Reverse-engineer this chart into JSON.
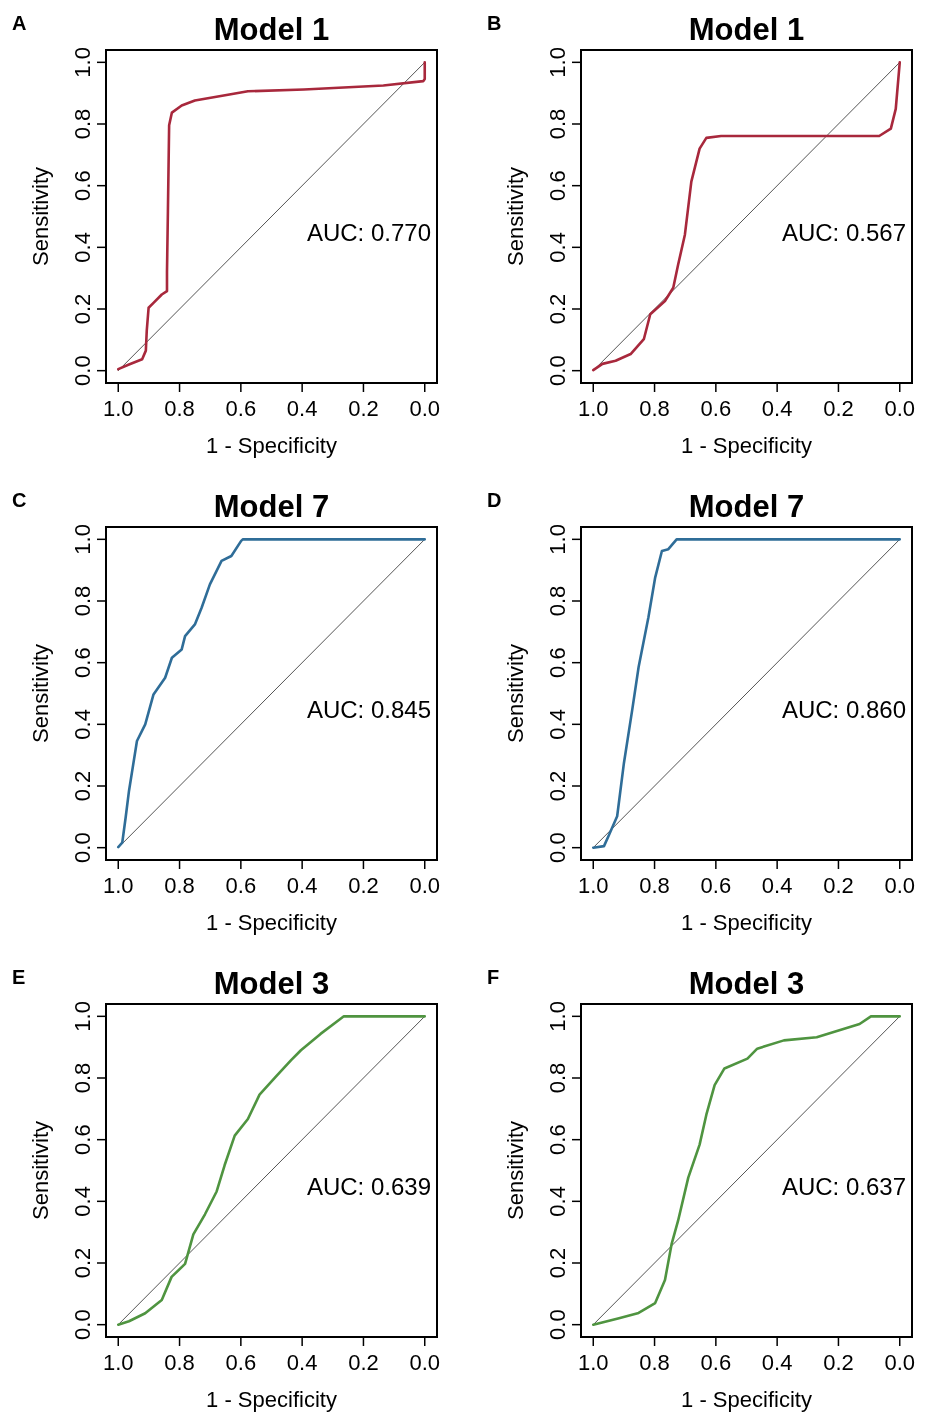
{
  "chart_data": [
    {
      "type": "line",
      "title": "Model 1",
      "xlabel": "1 - Specificity",
      "ylabel": "Sensitivity",
      "annotations": [
        "A",
        "AUC: 0.770"
      ],
      "xlim": [
        1.04,
        -0.04
      ],
      "ylim": [
        -0.04,
        1.04
      ],
      "xticks": [
        {
          "value": 1,
          "label": "1.0"
        },
        {
          "value": 0.8,
          "label": "0.8"
        },
        {
          "value": 0.6,
          "label": "0.6"
        },
        {
          "value": 0.4,
          "label": "0.4"
        },
        {
          "value": 0.2,
          "label": "0.2"
        },
        {
          "value": 0,
          "label": "0.0"
        }
      ],
      "yticks": [
        {
          "value": 0,
          "label": "0.0"
        },
        {
          "value": 0.2,
          "label": "0.2"
        },
        {
          "value": 0.4,
          "label": "0.4"
        },
        {
          "value": 0.6,
          "label": "0.6"
        },
        {
          "value": 0.8,
          "label": "0.8"
        },
        {
          "value": 1,
          "label": "1.0"
        }
      ],
      "series": [
        {
          "color": "#a8283c",
          "x": [
            1,
            0.965,
            0.922,
            0.91,
            0.907,
            0.901,
            0.885,
            0.858,
            0.841,
            0.841,
            0.838,
            0.834,
            0.825,
            0.793,
            0.75,
            0.642,
            0.577,
            0.394,
            0.135,
            0.005,
            0,
            0
          ],
          "values": [
            0.005,
            0.02,
            0.037,
            0.065,
            0.13,
            0.204,
            0.22,
            0.247,
            0.258,
            0.32,
            0.516,
            0.796,
            0.837,
            0.86,
            0.876,
            0.895,
            0.906,
            0.912,
            0.925,
            0.939,
            0.946,
            1
          ]
        },
        {
          "color": "#555555",
          "x": [
            1,
            0
          ],
          "values": [
            0,
            1
          ]
        }
      ]
    },
    {
      "type": "line",
      "title": "Model 1",
      "xlabel": "1 - Specificity",
      "ylabel": "Sensitivity",
      "annotations": [
        "B",
        "AUC: 0.567"
      ],
      "xlim": [
        1.04,
        -0.04
      ],
      "ylim": [
        -0.04,
        1.04
      ],
      "xticks": [
        {
          "value": 1,
          "label": "1.0"
        },
        {
          "value": 0.8,
          "label": "0.8"
        },
        {
          "value": 0.6,
          "label": "0.6"
        },
        {
          "value": 0.4,
          "label": "0.4"
        },
        {
          "value": 0.2,
          "label": "0.2"
        },
        {
          "value": 0,
          "label": "0.0"
        }
      ],
      "yticks": [
        {
          "value": 0,
          "label": "0.0"
        },
        {
          "value": 0.2,
          "label": "0.2"
        },
        {
          "value": 0.4,
          "label": "0.4"
        },
        {
          "value": 0.6,
          "label": "0.6"
        },
        {
          "value": 0.8,
          "label": "0.8"
        },
        {
          "value": 1,
          "label": "1.0"
        }
      ],
      "series": [
        {
          "color": "#a8283c",
          "x": [
            1,
            0.97,
            0.927,
            0.878,
            0.835,
            0.814,
            0.766,
            0.739,
            0.723,
            0.701,
            0.68,
            0.653,
            0.631,
            0.583,
            0.067,
            0.029,
            0.013,
            0
          ],
          "values": [
            0.002,
            0.022,
            0.032,
            0.054,
            0.102,
            0.183,
            0.226,
            0.269,
            0.344,
            0.441,
            0.613,
            0.72,
            0.755,
            0.761,
            0.761,
            0.785,
            0.849,
            1
          ]
        },
        {
          "color": "#555555",
          "x": [
            1,
            0
          ],
          "values": [
            0,
            1
          ]
        }
      ]
    },
    {
      "type": "line",
      "title": "Model 7",
      "xlabel": "1 - Specificity",
      "ylabel": "Sensitivity",
      "annotations": [
        "C",
        "AUC: 0.845"
      ],
      "xlim": [
        1.04,
        -0.04
      ],
      "ylim": [
        -0.04,
        1.04
      ],
      "xticks": [
        {
          "value": 1,
          "label": "1.0"
        },
        {
          "value": 0.8,
          "label": "0.8"
        },
        {
          "value": 0.6,
          "label": "0.6"
        },
        {
          "value": 0.4,
          "label": "0.4"
        },
        {
          "value": 0.2,
          "label": "0.2"
        },
        {
          "value": 0,
          "label": "0.0"
        }
      ],
      "yticks": [
        {
          "value": 0,
          "label": "0.0"
        },
        {
          "value": 0.2,
          "label": "0.2"
        },
        {
          "value": 0.4,
          "label": "0.4"
        },
        {
          "value": 0.6,
          "label": "0.6"
        },
        {
          "value": 0.8,
          "label": "0.8"
        },
        {
          "value": 1,
          "label": "1.0"
        }
      ],
      "series": [
        {
          "color": "#2f6d98",
          "x": [
            1,
            0.987,
            0.976,
            0.965,
            0.939,
            0.912,
            0.885,
            0.847,
            0.825,
            0.793,
            0.782,
            0.75,
            0.728,
            0.701,
            0.663,
            0.631,
            0.599,
            0.593,
            0
          ],
          "values": [
            0.002,
            0.016,
            0.097,
            0.184,
            0.346,
            0.4,
            0.497,
            0.551,
            0.616,
            0.643,
            0.686,
            0.724,
            0.778,
            0.854,
            0.93,
            0.946,
            0.995,
            1,
            1
          ]
        },
        {
          "color": "#555555",
          "x": [
            1,
            0
          ],
          "values": [
            0,
            1
          ]
        }
      ]
    },
    {
      "type": "line",
      "title": "Model 7",
      "xlabel": "1 - Specificity",
      "ylabel": "Sensitivity",
      "annotations": [
        "D",
        "AUC: 0.860"
      ],
      "xlim": [
        1.04,
        -0.04
      ],
      "ylim": [
        -0.04,
        1.04
      ],
      "xticks": [
        {
          "value": 1,
          "label": "1.0"
        },
        {
          "value": 0.8,
          "label": "0.8"
        },
        {
          "value": 0.6,
          "label": "0.6"
        },
        {
          "value": 0.4,
          "label": "0.4"
        },
        {
          "value": 0.2,
          "label": "0.2"
        },
        {
          "value": 0,
          "label": "0.0"
        }
      ],
      "yticks": [
        {
          "value": 0,
          "label": "0.0"
        },
        {
          "value": 0.2,
          "label": "0.2"
        },
        {
          "value": 0.4,
          "label": "0.4"
        },
        {
          "value": 0.6,
          "label": "0.6"
        },
        {
          "value": 0.8,
          "label": "0.8"
        },
        {
          "value": 1,
          "label": "1.0"
        }
      ],
      "series": [
        {
          "color": "#2f6d98",
          "x": [
            1,
            0.965,
            0.948,
            0.922,
            0.9,
            0.873,
            0.852,
            0.82,
            0.798,
            0.776,
            0.755,
            0.728,
            0
          ],
          "values": [
            0,
            0.005,
            0.043,
            0.102,
            0.274,
            0.446,
            0.586,
            0.747,
            0.876,
            0.962,
            0.968,
            1,
            1
          ]
        },
        {
          "color": "#555555",
          "x": [
            1,
            0
          ],
          "values": [
            0,
            1
          ]
        }
      ]
    },
    {
      "type": "line",
      "title": "Model 3",
      "xlabel": "1 - Specificity",
      "ylabel": "Sensitivity",
      "annotations": [
        "E",
        "AUC: 0.639"
      ],
      "xlim": [
        1.04,
        -0.04
      ],
      "ylim": [
        -0.04,
        1.04
      ],
      "xticks": [
        {
          "value": 1,
          "label": "1.0"
        },
        {
          "value": 0.8,
          "label": "0.8"
        },
        {
          "value": 0.6,
          "label": "0.6"
        },
        {
          "value": 0.4,
          "label": "0.4"
        },
        {
          "value": 0.2,
          "label": "0.2"
        },
        {
          "value": 0,
          "label": "0.0"
        }
      ],
      "yticks": [
        {
          "value": 0,
          "label": "0.0"
        },
        {
          "value": 0.2,
          "label": "0.2"
        },
        {
          "value": 0.4,
          "label": "0.4"
        },
        {
          "value": 0.6,
          "label": "0.6"
        },
        {
          "value": 0.8,
          "label": "0.8"
        },
        {
          "value": 1,
          "label": "1.0"
        }
      ],
      "series": [
        {
          "color": "#4f9440",
          "x": [
            1,
            0.965,
            0.912,
            0.858,
            0.826,
            0.782,
            0.755,
            0.717,
            0.679,
            0.653,
            0.62,
            0.577,
            0.539,
            0.485,
            0.436,
            0.404,
            0.34,
            0.264,
            0
          ],
          "values": [
            0,
            0.011,
            0.037,
            0.08,
            0.155,
            0.197,
            0.293,
            0.358,
            0.432,
            0.517,
            0.613,
            0.667,
            0.746,
            0.805,
            0.858,
            0.89,
            0.943,
            1,
            1
          ]
        },
        {
          "color": "#555555",
          "x": [
            1,
            0
          ],
          "values": [
            0,
            1
          ]
        }
      ]
    },
    {
      "type": "line",
      "title": "Model 3",
      "xlabel": "1 - Specificity",
      "ylabel": "Sensitivity",
      "annotations": [
        "F",
        "AUC: 0.637"
      ],
      "xlim": [
        1.04,
        -0.04
      ],
      "ylim": [
        -0.04,
        1.04
      ],
      "xticks": [
        {
          "value": 1,
          "label": "1.0"
        },
        {
          "value": 0.8,
          "label": "0.8"
        },
        {
          "value": 0.6,
          "label": "0.6"
        },
        {
          "value": 0.4,
          "label": "0.4"
        },
        {
          "value": 0.2,
          "label": "0.2"
        },
        {
          "value": 0,
          "label": "0.0"
        }
      ],
      "yticks": [
        {
          "value": 0,
          "label": "0.0"
        },
        {
          "value": 0.2,
          "label": "0.2"
        },
        {
          "value": 0.4,
          "label": "0.4"
        },
        {
          "value": 0.6,
          "label": "0.6"
        },
        {
          "value": 0.8,
          "label": "0.8"
        },
        {
          "value": 1,
          "label": "1.0"
        }
      ],
      "series": [
        {
          "color": "#4f9440",
          "x": [
            1,
            0.916,
            0.852,
            0.798,
            0.766,
            0.744,
            0.723,
            0.69,
            0.653,
            0.631,
            0.604,
            0.572,
            0.497,
            0.465,
            0.378,
            0.271,
            0.131,
            0.094,
            0
          ],
          "values": [
            0,
            0.021,
            0.038,
            0.07,
            0.145,
            0.263,
            0.338,
            0.477,
            0.584,
            0.681,
            0.777,
            0.831,
            0.863,
            0.895,
            0.922,
            0.932,
            0.975,
            1,
            1
          ]
        },
        {
          "color": "#555555",
          "x": [
            1,
            0
          ],
          "values": [
            0,
            1
          ]
        }
      ]
    }
  ]
}
